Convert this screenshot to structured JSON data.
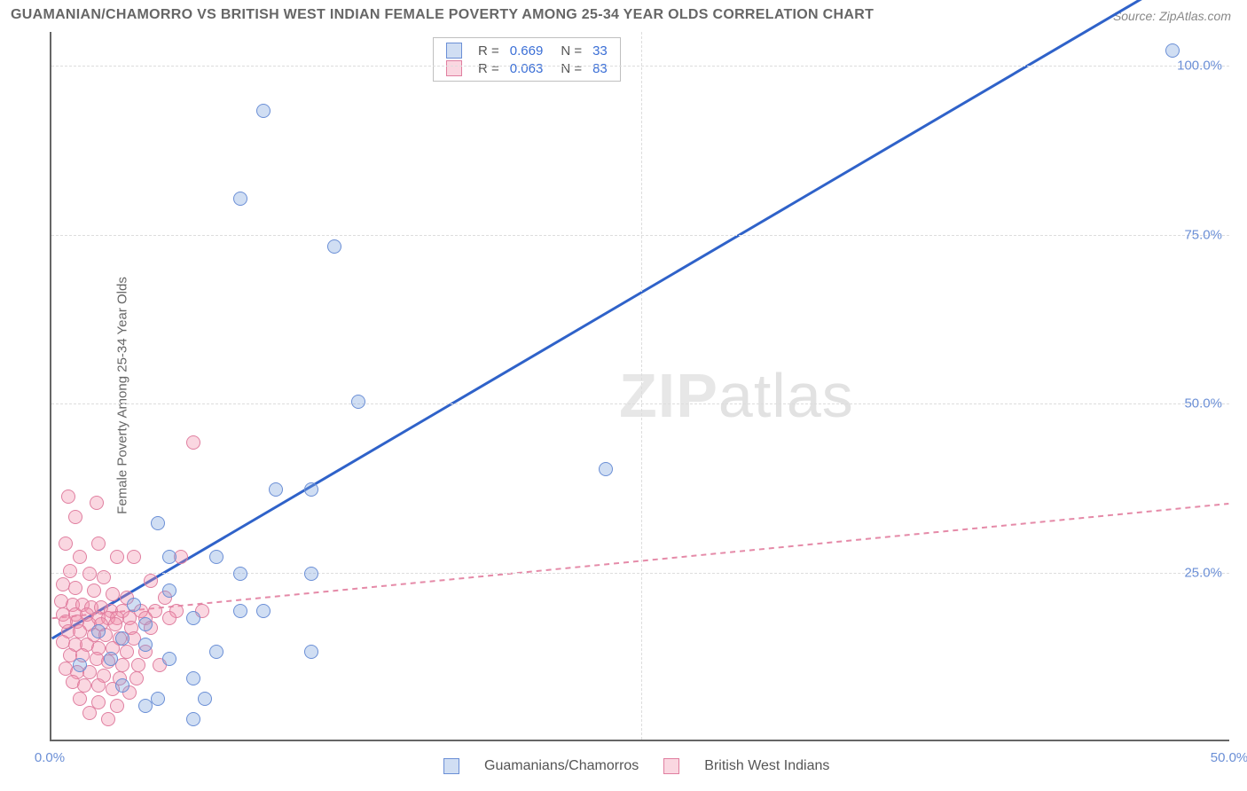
{
  "title": "GUAMANIAN/CHAMORRO VS BRITISH WEST INDIAN FEMALE POVERTY AMONG 25-34 YEAR OLDS CORRELATION CHART",
  "source": "Source: ZipAtlas.com",
  "y_axis_label": "Female Poverty Among 25-34 Year Olds",
  "watermark_a": "ZIP",
  "watermark_b": "atlas",
  "chart": {
    "type": "scatter",
    "xlim": [
      0,
      50
    ],
    "ylim": [
      0,
      105
    ],
    "x_ticks": [
      0,
      25,
      50
    ],
    "x_tick_labels": [
      "0.0%",
      "",
      "50.0%"
    ],
    "y_ticks": [
      25,
      50,
      75,
      100
    ],
    "y_tick_labels": [
      "25.0%",
      "50.0%",
      "75.0%",
      "100.0%"
    ],
    "grid_color": "#dddddd",
    "axis_color": "#666666",
    "background_color": "#ffffff",
    "series": [
      {
        "name": "Guamanians/Chamorros",
        "marker_fill": "rgba(120,160,220,0.35)",
        "marker_stroke": "#6b8fd6",
        "marker_radius": 8,
        "trend": {
          "slope": 2.05,
          "intercept": 15,
          "stroke": "#2f62c9",
          "stroke_width": 3,
          "dash": "none"
        },
        "R": "0.669",
        "N": "33",
        "points": [
          [
            47.5,
            102
          ],
          [
            9,
            93
          ],
          [
            8,
            80
          ],
          [
            12,
            73
          ],
          [
            13,
            50
          ],
          [
            23.5,
            40
          ],
          [
            4.5,
            32
          ],
          [
            9.5,
            37
          ],
          [
            11,
            37
          ],
          [
            5,
            27
          ],
          [
            7,
            27
          ],
          [
            8,
            24.5
          ],
          [
            11,
            24.5
          ],
          [
            5,
            22
          ],
          [
            3.5,
            20
          ],
          [
            4,
            17
          ],
          [
            6,
            18
          ],
          [
            8,
            19
          ],
          [
            9,
            19
          ],
          [
            2,
            16
          ],
          [
            3,
            15
          ],
          [
            4,
            14
          ],
          [
            1.2,
            11
          ],
          [
            2.5,
            12
          ],
          [
            5,
            12
          ],
          [
            7,
            13
          ],
          [
            6,
            9
          ],
          [
            4.5,
            6
          ],
          [
            6.5,
            6
          ],
          [
            11,
            13
          ],
          [
            3,
            8
          ],
          [
            4,
            5
          ],
          [
            6,
            3
          ]
        ]
      },
      {
        "name": "British West Indians",
        "marker_fill": "rgba(240,140,170,0.35)",
        "marker_stroke": "#e07fa0",
        "marker_radius": 8,
        "trend": {
          "slope": 0.34,
          "intercept": 18,
          "stroke": "#e58aa8",
          "stroke_width": 2,
          "dash": "6,5"
        },
        "R": "0.063",
        "N": "83",
        "points": [
          [
            6,
            44
          ],
          [
            0.7,
            36
          ],
          [
            1.9,
            35
          ],
          [
            1.0,
            33
          ],
          [
            0.6,
            29
          ],
          [
            2.0,
            29
          ],
          [
            1.2,
            27
          ],
          [
            2.8,
            27
          ],
          [
            3.5,
            27
          ],
          [
            5.5,
            27
          ],
          [
            0.8,
            25
          ],
          [
            1.6,
            24.5
          ],
          [
            2.2,
            24
          ],
          [
            4.2,
            23.5
          ],
          [
            0.5,
            23
          ],
          [
            1.0,
            22.5
          ],
          [
            1.8,
            22
          ],
          [
            2.6,
            21.5
          ],
          [
            3.2,
            21
          ],
          [
            4.8,
            21
          ],
          [
            0.4,
            20.5
          ],
          [
            0.9,
            20
          ],
          [
            1.3,
            20
          ],
          [
            1.7,
            19.5
          ],
          [
            2.1,
            19.5
          ],
          [
            2.5,
            19
          ],
          [
            3.0,
            19
          ],
          [
            3.8,
            19
          ],
          [
            4.4,
            19
          ],
          [
            5.3,
            19
          ],
          [
            6.4,
            19
          ],
          [
            0.5,
            18.5
          ],
          [
            1.0,
            18.5
          ],
          [
            1.5,
            18.5
          ],
          [
            2.0,
            18
          ],
          [
            2.4,
            18
          ],
          [
            2.8,
            18
          ],
          [
            3.3,
            18
          ],
          [
            4.0,
            18
          ],
          [
            5.0,
            18
          ],
          [
            0.6,
            17.5
          ],
          [
            1.1,
            17.5
          ],
          [
            1.6,
            17
          ],
          [
            2.1,
            17
          ],
          [
            2.7,
            17
          ],
          [
            3.4,
            16.5
          ],
          [
            4.2,
            16.5
          ],
          [
            0.7,
            16
          ],
          [
            1.2,
            16
          ],
          [
            1.8,
            15.5
          ],
          [
            2.3,
            15.5
          ],
          [
            2.9,
            15
          ],
          [
            3.5,
            15
          ],
          [
            0.5,
            14.5
          ],
          [
            1.0,
            14
          ],
          [
            1.5,
            14
          ],
          [
            2.0,
            13.5
          ],
          [
            2.6,
            13.5
          ],
          [
            3.2,
            13
          ],
          [
            4.0,
            13
          ],
          [
            0.8,
            12.5
          ],
          [
            1.3,
            12.5
          ],
          [
            1.9,
            12
          ],
          [
            2.4,
            11.5
          ],
          [
            3.0,
            11
          ],
          [
            3.7,
            11
          ],
          [
            4.6,
            11
          ],
          [
            0.6,
            10.5
          ],
          [
            1.1,
            10
          ],
          [
            1.6,
            10
          ],
          [
            2.2,
            9.5
          ],
          [
            2.9,
            9
          ],
          [
            3.6,
            9
          ],
          [
            0.9,
            8.5
          ],
          [
            1.4,
            8
          ],
          [
            2.0,
            8
          ],
          [
            2.6,
            7.5
          ],
          [
            3.3,
            7
          ],
          [
            1.2,
            6
          ],
          [
            2.0,
            5.5
          ],
          [
            2.8,
            5
          ],
          [
            1.6,
            4
          ],
          [
            2.4,
            3
          ]
        ]
      }
    ]
  },
  "legend_top": {
    "rows": [
      {
        "swatch_fill": "rgba(120,160,220,0.35)",
        "swatch_stroke": "#6b8fd6",
        "R_label": "R =",
        "R": "0.669",
        "N_label": "N =",
        "N": "33"
      },
      {
        "swatch_fill": "rgba(240,140,170,0.35)",
        "swatch_stroke": "#e07fa0",
        "R_label": "R =",
        "R": "0.063",
        "N_label": "N =",
        "N": "83"
      }
    ]
  },
  "legend_bottom": {
    "items": [
      {
        "swatch_fill": "rgba(120,160,220,0.35)",
        "swatch_stroke": "#6b8fd6",
        "label": "Guamanians/Chamorros"
      },
      {
        "swatch_fill": "rgba(240,140,170,0.35)",
        "swatch_stroke": "#e07fa0",
        "label": "British West Indians"
      }
    ]
  }
}
